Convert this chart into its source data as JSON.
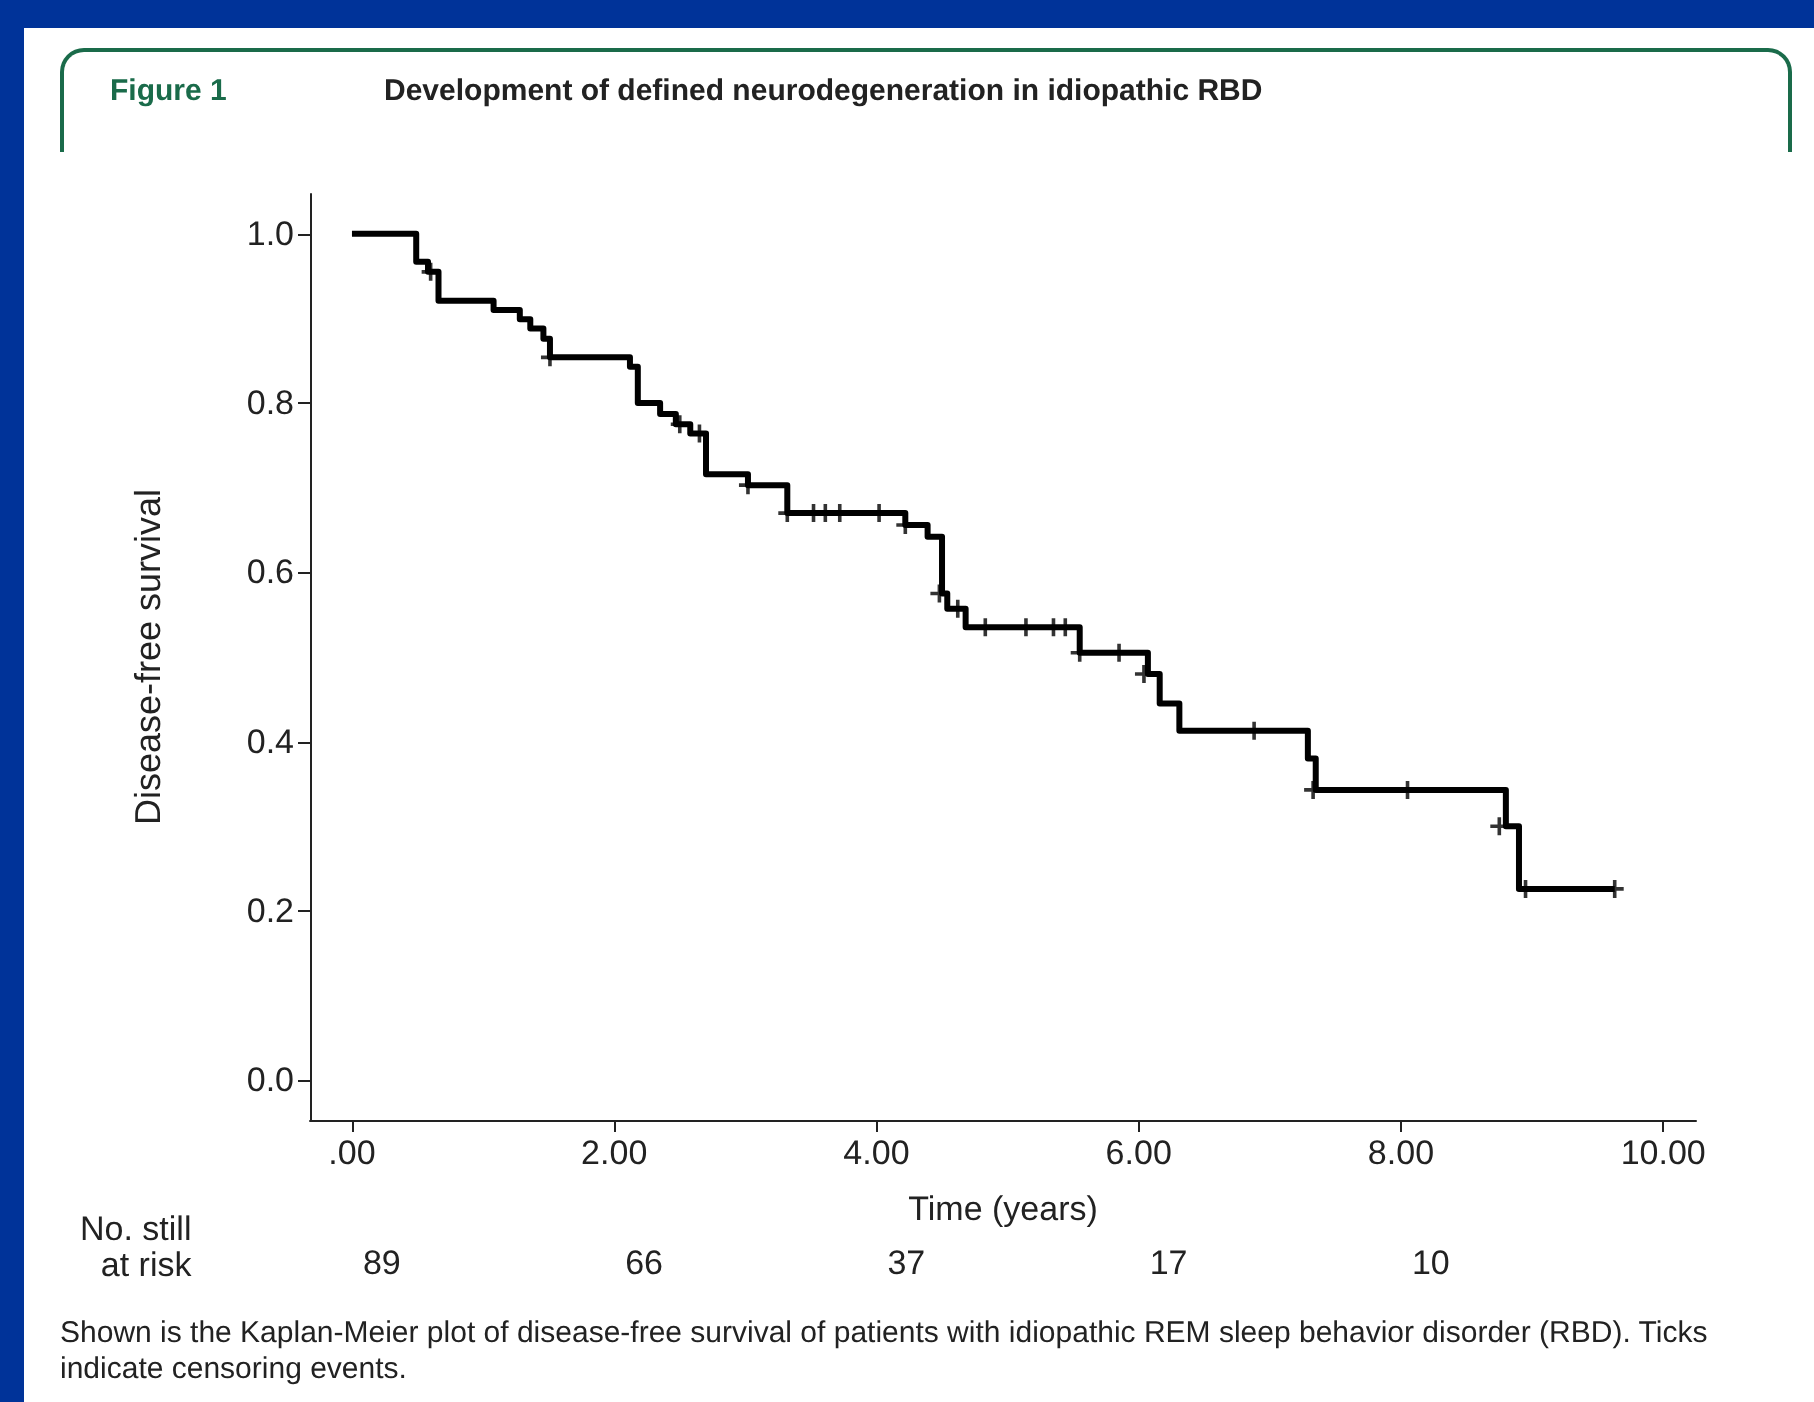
{
  "chart_data": {
    "type": "step",
    "title": "Development of defined neurodegeneration in idiopathic RBD",
    "xlabel": "Time (years)",
    "ylabel": "Disease-free survival",
    "xlim": [
      -0.32,
      10.25
    ],
    "ylim": [
      -0.047,
      1.047
    ],
    "xticks": [
      {
        "value": 0,
        "label": ".00"
      },
      {
        "value": 2,
        "label": "2.00"
      },
      {
        "value": 4,
        "label": "4.00"
      },
      {
        "value": 6,
        "label": "6.00"
      },
      {
        "value": 8,
        "label": "8.00"
      },
      {
        "value": 10,
        "label": "10.00"
      }
    ],
    "yticks": [
      {
        "value": 0,
        "label": "0.0"
      },
      {
        "value": 0.2,
        "label": "0.2"
      },
      {
        "value": 0.4,
        "label": "0.4"
      },
      {
        "value": 0.6,
        "label": "0.6"
      },
      {
        "value": 0.8,
        "label": "0.8"
      },
      {
        "value": 1,
        "label": "1.0"
      }
    ],
    "grid": false,
    "series": [
      {
        "color": "#000000",
        "marker": "none",
        "line_style": "solid",
        "x": [
          0,
          0.49,
          0.58,
          0.66,
          1.08,
          1.28,
          1.36,
          1.46,
          1.51,
          2.12,
          2.18,
          2.35,
          2.47,
          2.58,
          2.7,
          3.02,
          3.32,
          4.22,
          4.39,
          4.5,
          4.54,
          4.68,
          5.55,
          6.07,
          6.16,
          6.31,
          7.29,
          7.35,
          8.8,
          8.9,
          9.63
        ],
        "values": [
          1.0,
          0.967,
          0.955,
          0.921,
          0.91,
          0.899,
          0.888,
          0.876,
          0.854,
          0.843,
          0.8,
          0.787,
          0.775,
          0.764,
          0.716,
          0.703,
          0.67,
          0.656,
          0.642,
          0.575,
          0.557,
          0.535,
          0.505,
          0.48,
          0.445,
          0.413,
          0.38,
          0.343,
          0.3,
          0.226,
          0.226
        ]
      },
      {
        "type": "scatter",
        "color": "#000000",
        "marker": "cross",
        "x": [
          0.6,
          1.51,
          2.5,
          2.65,
          3.02,
          3.32,
          3.52,
          3.61,
          3.72,
          4.02,
          4.22,
          4.48,
          4.62,
          4.83,
          5.14,
          5.35,
          5.44,
          5.55,
          5.85,
          6.04,
          6.88,
          7.33,
          8.05,
          8.75,
          8.95,
          9.63
        ],
        "values": [
          0.955,
          0.854,
          0.775,
          0.764,
          0.703,
          0.67,
          0.67,
          0.67,
          0.67,
          0.67,
          0.656,
          0.575,
          0.557,
          0.535,
          0.535,
          0.535,
          0.535,
          0.505,
          0.505,
          0.48,
          0.413,
          0.343,
          0.343,
          0.3,
          0.226,
          0.226
        ]
      }
    ],
    "annotations": [
      "Figure 1",
      "No. still\nat risk",
      "89",
      "66",
      "37",
      "17",
      "10",
      "Shown is the Kaplan-Meier plot of disease-free survival of patients with idiopathic REM sleep behavior disorder (RBD). Ticks indicate censoring events."
    ]
  }
}
